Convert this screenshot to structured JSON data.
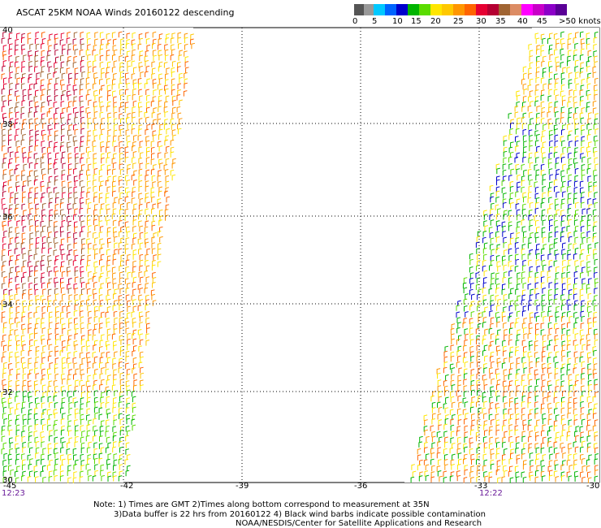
{
  "title": "ASCAT 25KM NOAA Winds 20160122 descending",
  "legend": {
    "colors": [
      "#555555",
      "#999999",
      "#00c8ff",
      "#0064ff",
      "#0000cc",
      "#00b400",
      "#5adc00",
      "#ffe600",
      "#ffc800",
      "#ff9600",
      "#ff6400",
      "#e60032",
      "#b40032",
      "#a06432",
      "#dc8c64",
      "#ff00ff",
      "#c800c8",
      "#8c00c8",
      "#5a0096"
    ],
    "ticks": [
      "0",
      "5",
      "10",
      "15",
      "20",
      "25",
      "30",
      "35",
      "40",
      "45",
      ">50 knots"
    ]
  },
  "map": {
    "lat_labels": [
      "40",
      "38",
      "36",
      "34",
      "32",
      "30"
    ],
    "lon_labels": [
      "-45",
      "-42",
      "-39",
      "-36",
      "-33",
      "-30"
    ],
    "time_labels": [
      "12:23",
      "12:22"
    ]
  },
  "notes": {
    "line1": "Note: 1) Times are GMT 2)Times along bottom correspond to measurement at 35N",
    "line2": "3)Data buffer is 22 hrs from 20160122 4) Black wind barbs indicate possible contamination",
    "line3": "NOAA/NESDIS/Center for Satellite Applications and Research"
  }
}
